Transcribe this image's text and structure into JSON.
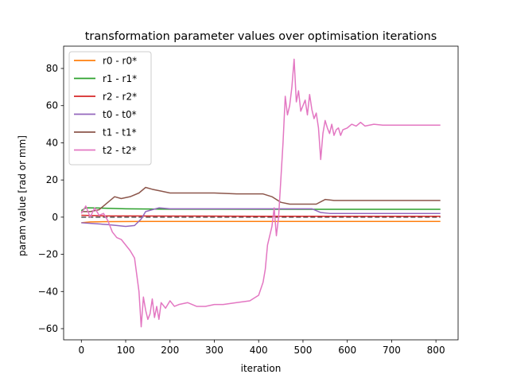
{
  "chart_data": {
    "type": "line",
    "title": "transformation parameter values over optimisation iterations",
    "xlabel": "iteration",
    "ylabel": "param value [rad or mm]",
    "xlim": [
      -40,
      850
    ],
    "ylim": [
      -66,
      92
    ],
    "x_ticks": [
      0,
      100,
      200,
      300,
      400,
      500,
      600,
      700,
      800
    ],
    "y_ticks": [
      -60,
      -40,
      -20,
      0,
      20,
      40,
      60,
      80
    ],
    "grid": false,
    "legend_position": "upper-left",
    "reference_line": {
      "y": 0,
      "style": "dashed",
      "color": "#555555"
    },
    "series": [
      {
        "name": "r0 - r0*",
        "color": "#ff7f0e",
        "points": [
          [
            0,
            -3
          ],
          [
            20,
            -2.6
          ],
          [
            60,
            -2.4
          ],
          [
            150,
            -2.3
          ],
          [
            300,
            -2.3
          ],
          [
            500,
            -2.3
          ],
          [
            810,
            -2.3
          ]
        ]
      },
      {
        "name": "r1 - r1*",
        "color": "#2ca02c",
        "points": [
          [
            0,
            3.5
          ],
          [
            10,
            5
          ],
          [
            40,
            4.9
          ],
          [
            100,
            4.5
          ],
          [
            200,
            4.3
          ],
          [
            300,
            4.3
          ],
          [
            500,
            4.2
          ],
          [
            810,
            4.2
          ]
        ]
      },
      {
        "name": "r2 - r2*",
        "color": "#d62728",
        "points": [
          [
            0,
            1
          ],
          [
            50,
            0.7
          ],
          [
            200,
            0.6
          ],
          [
            400,
            0.5
          ],
          [
            600,
            0.5
          ],
          [
            810,
            0.5
          ]
        ]
      },
      {
        "name": "t0 - t0*",
        "color": "#9467bd",
        "points": [
          [
            0,
            -3
          ],
          [
            30,
            -3.5
          ],
          [
            60,
            -4
          ],
          [
            100,
            -5
          ],
          [
            120,
            -4.5
          ],
          [
            135,
            -1
          ],
          [
            145,
            3
          ],
          [
            160,
            4
          ],
          [
            175,
            5
          ],
          [
            200,
            4.5
          ],
          [
            250,
            4.5
          ],
          [
            350,
            4.5
          ],
          [
            420,
            4.5
          ],
          [
            470,
            4.5
          ],
          [
            520,
            4.5
          ],
          [
            540,
            2.5
          ],
          [
            560,
            2
          ],
          [
            600,
            2
          ],
          [
            700,
            2
          ],
          [
            810,
            2
          ]
        ]
      },
      {
        "name": "t1 - t1*",
        "color": "#8c564b",
        "points": [
          [
            0,
            3
          ],
          [
            20,
            3
          ],
          [
            40,
            4
          ],
          [
            60,
            8
          ],
          [
            75,
            11
          ],
          [
            90,
            10
          ],
          [
            110,
            11
          ],
          [
            130,
            13
          ],
          [
            145,
            16
          ],
          [
            160,
            15
          ],
          [
            180,
            14
          ],
          [
            200,
            13
          ],
          [
            300,
            13
          ],
          [
            350,
            12.5
          ],
          [
            410,
            12.5
          ],
          [
            430,
            11
          ],
          [
            450,
            8
          ],
          [
            470,
            7
          ],
          [
            500,
            7
          ],
          [
            530,
            7
          ],
          [
            550,
            9.5
          ],
          [
            570,
            9
          ],
          [
            600,
            9
          ],
          [
            700,
            9
          ],
          [
            810,
            9
          ]
        ]
      },
      {
        "name": "t2 - t2*",
        "color": "#e377c2",
        "points": [
          [
            0,
            2
          ],
          [
            10,
            6
          ],
          [
            20,
            0
          ],
          [
            30,
            5
          ],
          [
            40,
            1
          ],
          [
            50,
            2
          ],
          [
            60,
            -2
          ],
          [
            70,
            -8
          ],
          [
            80,
            -11
          ],
          [
            90,
            -12
          ],
          [
            100,
            -15
          ],
          [
            110,
            -18
          ],
          [
            120,
            -22
          ],
          [
            130,
            -40
          ],
          [
            135,
            -59
          ],
          [
            140,
            -43
          ],
          [
            145,
            -50
          ],
          [
            150,
            -55
          ],
          [
            155,
            -52
          ],
          [
            160,
            -44
          ],
          [
            165,
            -54
          ],
          [
            170,
            -48
          ],
          [
            175,
            -55
          ],
          [
            180,
            -46
          ],
          [
            190,
            -49
          ],
          [
            200,
            -45
          ],
          [
            210,
            -48
          ],
          [
            220,
            -47
          ],
          [
            240,
            -46
          ],
          [
            260,
            -48
          ],
          [
            280,
            -48
          ],
          [
            300,
            -47
          ],
          [
            320,
            -47
          ],
          [
            350,
            -46
          ],
          [
            380,
            -45
          ],
          [
            400,
            -42
          ],
          [
            410,
            -35
          ],
          [
            415,
            -28
          ],
          [
            420,
            -15
          ],
          [
            430,
            -5
          ],
          [
            435,
            5
          ],
          [
            440,
            -10
          ],
          [
            445,
            0
          ],
          [
            450,
            20
          ],
          [
            455,
            40
          ],
          [
            460,
            65
          ],
          [
            465,
            55
          ],
          [
            470,
            60
          ],
          [
            475,
            70
          ],
          [
            480,
            85
          ],
          [
            485,
            62
          ],
          [
            490,
            68
          ],
          [
            495,
            57
          ],
          [
            500,
            60
          ],
          [
            505,
            63
          ],
          [
            510,
            55
          ],
          [
            515,
            66
          ],
          [
            520,
            58
          ],
          [
            525,
            53
          ],
          [
            530,
            56
          ],
          [
            535,
            48
          ],
          [
            540,
            31
          ],
          [
            545,
            45
          ],
          [
            550,
            52
          ],
          [
            555,
            48
          ],
          [
            560,
            45
          ],
          [
            565,
            50
          ],
          [
            570,
            44
          ],
          [
            575,
            47
          ],
          [
            580,
            48
          ],
          [
            585,
            44
          ],
          [
            590,
            47
          ],
          [
            600,
            48
          ],
          [
            610,
            50
          ],
          [
            620,
            49
          ],
          [
            630,
            51
          ],
          [
            640,
            49
          ],
          [
            660,
            50
          ],
          [
            680,
            49.5
          ],
          [
            700,
            49.5
          ],
          [
            750,
            49.5
          ],
          [
            810,
            49.5
          ]
        ]
      }
    ]
  }
}
